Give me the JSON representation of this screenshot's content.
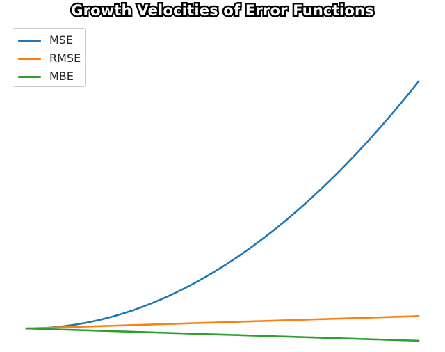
{
  "chart_data": {
    "type": "line",
    "title": "Growth Velocities of Error Functions",
    "xlabel": "",
    "ylabel": "",
    "axes_visible": false,
    "grid": false,
    "legend_position": "top-left",
    "x": [
      0,
      1,
      2,
      3,
      4,
      5,
      6,
      7,
      8,
      9,
      10
    ],
    "xlim": [
      0,
      10
    ],
    "ylim": [
      -5,
      129
    ],
    "series": [
      {
        "name": "MSE",
        "color": "#1f77b4",
        "values": [
          0,
          1,
          4,
          9,
          16,
          25,
          36,
          49,
          64,
          81,
          100
        ]
      },
      {
        "name": "RMSE",
        "color": "#ff7f0e",
        "values": [
          0,
          0.5,
          1,
          1.5,
          2,
          2.5,
          3,
          3.5,
          4,
          4.5,
          5
        ]
      },
      {
        "name": "MBE",
        "color": "#2ca02c",
        "values": [
          0,
          -0.5,
          -1,
          -1.5,
          -2,
          -2.5,
          -3,
          -3.5,
          -4,
          -4.5,
          -5
        ]
      }
    ]
  }
}
